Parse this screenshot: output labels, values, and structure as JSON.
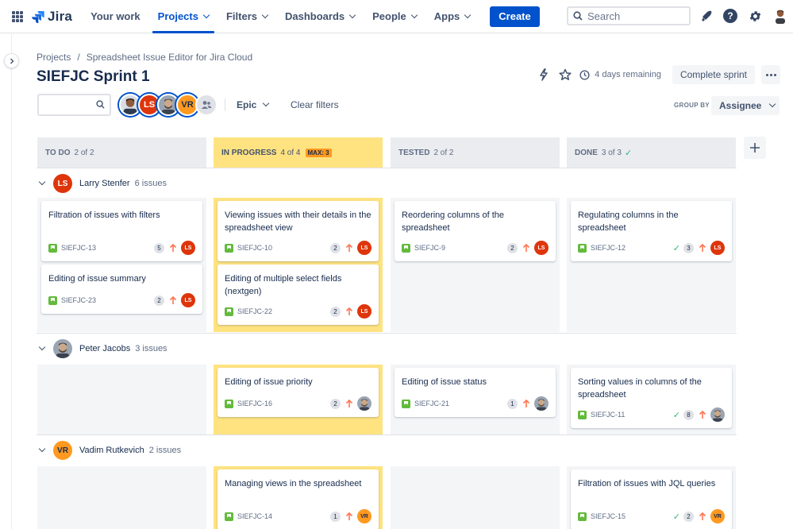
{
  "nav": {
    "brand": "Jira",
    "items": [
      {
        "label": "Your work",
        "dropdown": false,
        "active": false
      },
      {
        "label": "Projects",
        "dropdown": true,
        "active": true
      },
      {
        "label": "Filters",
        "dropdown": true,
        "active": false
      },
      {
        "label": "Dashboards",
        "dropdown": true,
        "active": false
      },
      {
        "label": "People",
        "dropdown": true,
        "active": false
      },
      {
        "label": "Apps",
        "dropdown": true,
        "active": false
      }
    ],
    "create_label": "Create",
    "search_placeholder": "Search",
    "accent": "#0052cc"
  },
  "breadcrumb": [
    "Projects",
    "Spreadsheet Issue Editor for Jira Cloud"
  ],
  "sprint": {
    "title": "SIEFJC Sprint 1",
    "remaining": "4 days remaining",
    "complete_label": "Complete sprint"
  },
  "filters": {
    "avatars": [
      {
        "initials": "",
        "type": "photo-dark"
      },
      {
        "initials": "LS",
        "type": "ls"
      },
      {
        "initials": "",
        "type": "photo-beard"
      },
      {
        "initials": "VR",
        "type": "vr"
      }
    ],
    "epic_label": "Epic",
    "clear_label": "Clear filters",
    "group_by_label": "GROUP BY",
    "group_by_value": "Assignee"
  },
  "columns": [
    {
      "name": "TO DO",
      "count": "2 of 2",
      "max": "",
      "done": false,
      "highlight": false
    },
    {
      "name": "IN PROGRESS",
      "count": "4 of 4",
      "max": "MAX: 3",
      "done": false,
      "highlight": true
    },
    {
      "name": "TESTED",
      "count": "2 of 2",
      "max": "",
      "done": false,
      "highlight": false
    },
    {
      "name": "DONE",
      "count": "3 of 3",
      "max": "",
      "done": true,
      "highlight": false
    }
  ],
  "lanes": [
    {
      "name": "Larry Stenfer",
      "count": "6 issues",
      "initials": "LS",
      "avatar": "ls",
      "cells": [
        [
          {
            "title": "Filtration of issues with filters",
            "key": "SIEFJC-13",
            "points": "5",
            "done": false
          },
          {
            "title": "Editing of issue summary",
            "key": "SIEFJC-23",
            "points": "2",
            "done": false
          }
        ],
        [
          {
            "title": "Viewing issues with their details in the spreadsheet view",
            "key": "SIEFJC-10",
            "points": "2",
            "done": false
          },
          {
            "title": "Editing of multiple select fields (nextgen)",
            "key": "SIEFJC-22",
            "points": "2",
            "done": false
          }
        ],
        [
          {
            "title": "Reordering columns of the spreadsheet",
            "key": "SIEFJC-9",
            "points": "2",
            "done": false
          }
        ],
        [
          {
            "title": "Regulating columns in the spreadsheet",
            "key": "SIEFJC-12",
            "points": "3",
            "done": true
          }
        ]
      ]
    },
    {
      "name": "Peter Jacobs",
      "count": "3 issues",
      "initials": "",
      "avatar": "photo-beard",
      "cells": [
        [],
        [
          {
            "title": "Editing of issue priority",
            "key": "SIEFJC-16",
            "points": "2",
            "done": false
          }
        ],
        [
          {
            "title": "Editing of issue status",
            "key": "SIEFJC-21",
            "points": "1",
            "done": false
          }
        ],
        [
          {
            "title": "Sorting values in columns of the spreadsheet",
            "key": "SIEFJC-11",
            "points": "8",
            "done": true
          }
        ]
      ]
    },
    {
      "name": "Vadim Rutkevich",
      "count": "2 issues",
      "initials": "VR",
      "avatar": "vr",
      "cells": [
        [],
        [
          {
            "title": "Managing views in the spreadsheet",
            "key": "SIEFJC-14",
            "points": "1",
            "done": false
          }
        ],
        [],
        [
          {
            "title": "Filtration of issues with JQL queries",
            "key": "SIEFJC-15",
            "points": "2",
            "done": true
          }
        ]
      ]
    }
  ]
}
